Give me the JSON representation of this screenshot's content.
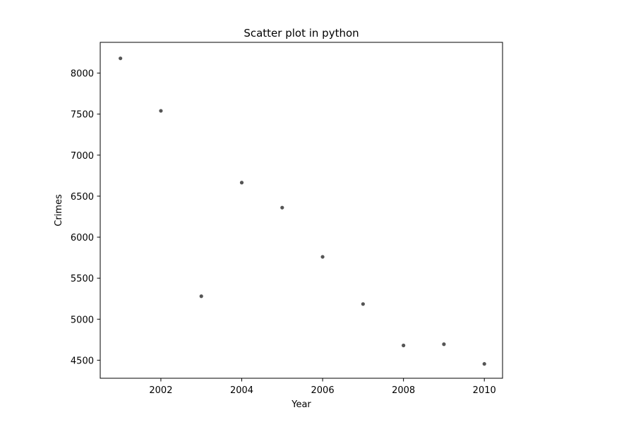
{
  "chart_data": {
    "type": "scatter",
    "title": "Scatter plot in python",
    "xlabel": "Year",
    "ylabel": "Crimes",
    "x": [
      2001,
      2002,
      2003,
      2004,
      2005,
      2006,
      2007,
      2008,
      2009,
      2010
    ],
    "y": [
      8180,
      7540,
      5280,
      6665,
      6360,
      5760,
      5185,
      4680,
      4695,
      4455
    ],
    "xlim": [
      2000.5,
      2010.45
    ],
    "ylim": [
      4280,
      8375
    ],
    "xticks": [
      2002,
      2004,
      2006,
      2008,
      2010
    ],
    "yticks": [
      4500,
      5000,
      5500,
      6000,
      6500,
      7000,
      7500,
      8000
    ],
    "grid": false,
    "legend": "none",
    "point_color": "#555555"
  }
}
